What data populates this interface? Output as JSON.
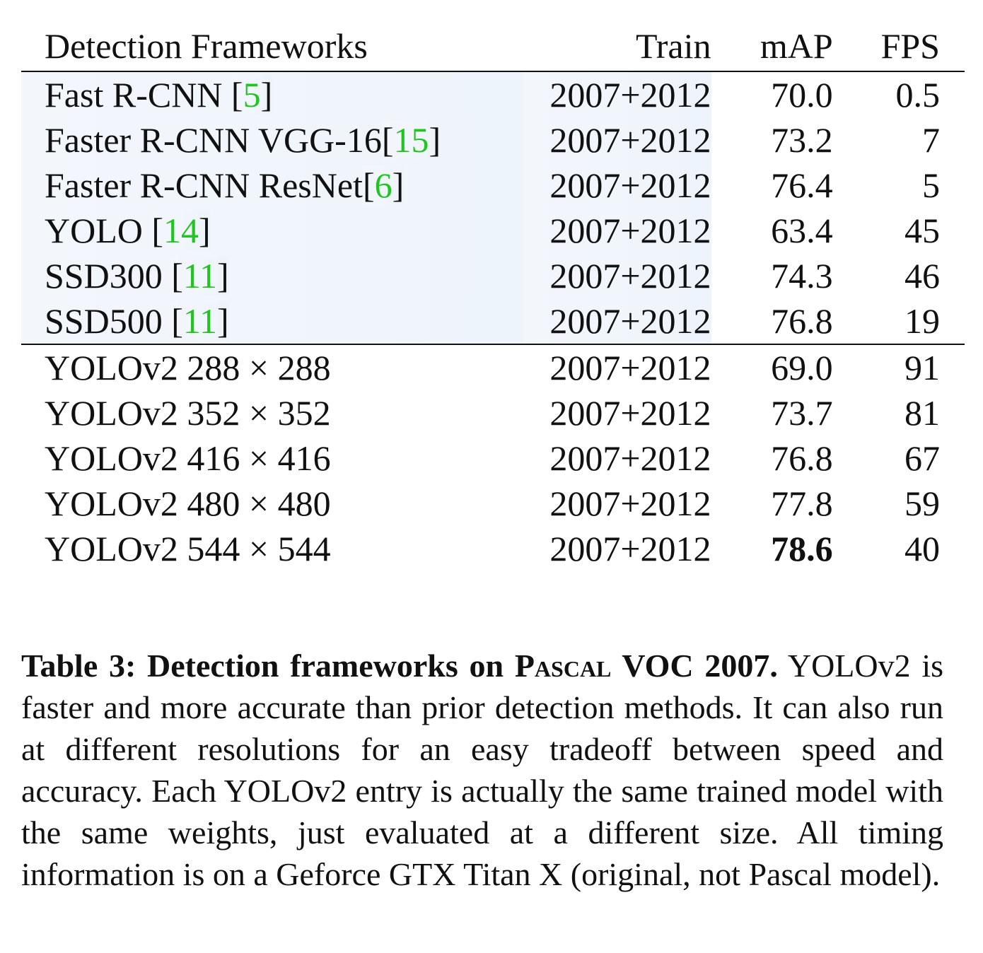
{
  "table": {
    "headers": {
      "name": "Detection Frameworks",
      "train": "Train",
      "map": "mAP",
      "fps": "FPS"
    },
    "prior_rows": [
      {
        "name": "Fast R-CNN ",
        "cite": "5",
        "train": "2007+2012",
        "map": "70.0",
        "fps": "0.5"
      },
      {
        "name": "Faster R-CNN VGG-16",
        "cite": "15",
        "train": "2007+2012",
        "map": "73.2",
        "fps": "7"
      },
      {
        "name": "Faster R-CNN ResNet",
        "cite": "6",
        "train": "2007+2012",
        "map": "76.4",
        "fps": "5"
      },
      {
        "name": "YOLO ",
        "cite": "14",
        "train": "2007+2012",
        "map": "63.4",
        "fps": "45"
      },
      {
        "name": "SSD300 ",
        "cite": "11",
        "train": "2007+2012",
        "map": "74.3",
        "fps": "46"
      },
      {
        "name": "SSD500 ",
        "cite": "11",
        "train": "2007+2012",
        "map": "76.8",
        "fps": "19"
      }
    ],
    "yolov2_rows": [
      {
        "name": "YOLOv2 288 × 288",
        "train": "2007+2012",
        "map": "69.0",
        "fps": "91"
      },
      {
        "name": "YOLOv2 352 × 352",
        "train": "2007+2012",
        "map": "73.7",
        "fps": "81"
      },
      {
        "name": "YOLOv2 416 × 416",
        "train": "2007+2012",
        "map": "76.8",
        "fps": "67"
      },
      {
        "name": "YOLOv2 480 × 480",
        "train": "2007+2012",
        "map": "77.8",
        "fps": "59"
      },
      {
        "name": "YOLOv2 544 × 544",
        "train": "2007+2012",
        "map": "78.6",
        "fps": "40"
      }
    ],
    "best_map": "78.6"
  },
  "caption": {
    "title_prefix": "Table 3:  Detection frameworks on ",
    "title_smallcaps": "Pascal",
    "title_suffix": " VOC 2007.",
    "body": "YOLOv2 is faster and more accurate than prior detection methods. It can also run at different resolutions for an easy tradeoff between speed and accuracy. Each YOLOv2 entry is actually the same trained model with the same weights, just evaluated at a different size. All timing information is on a Geforce GTX Titan X (original, not Pascal model)."
  },
  "colors": {
    "citation": "#22c422",
    "highlight": "#eef4fb"
  }
}
